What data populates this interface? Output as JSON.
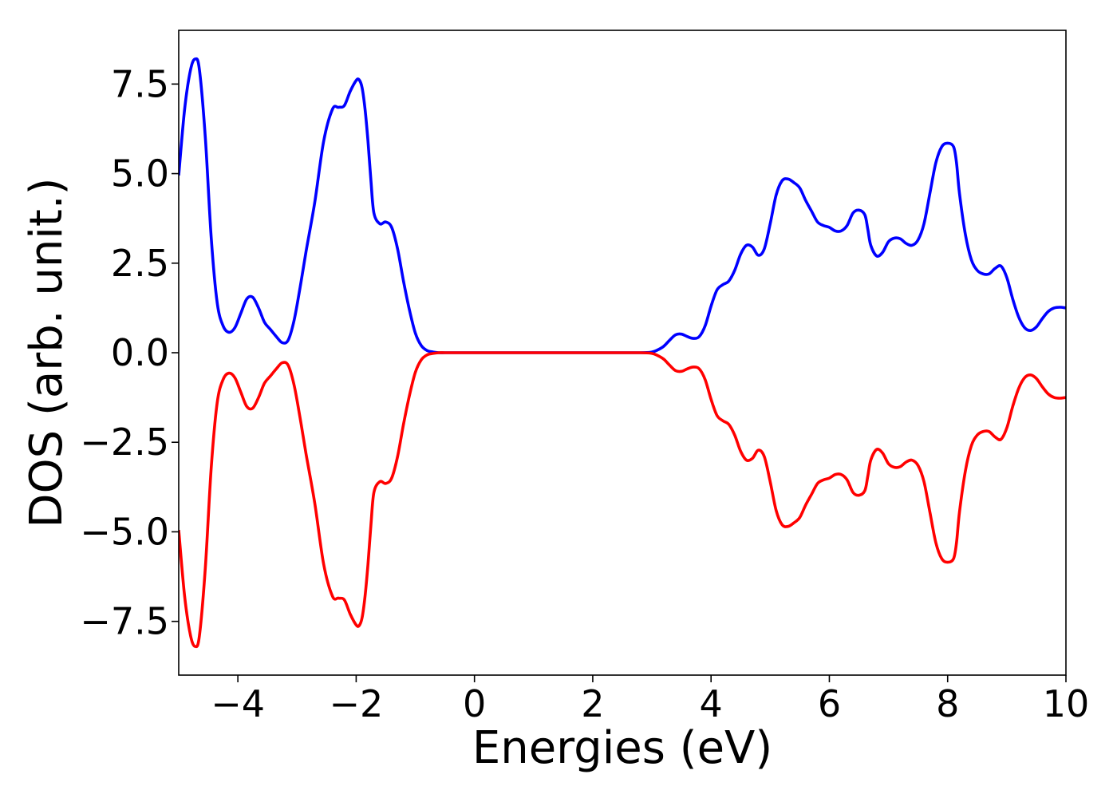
{
  "chart_data": {
    "type": "line",
    "title": "",
    "xlabel": "Energies (eV)",
    "ylabel": "DOS (arb. unit.)",
    "xlim": [
      -5,
      10
    ],
    "ylim": [
      -9.0,
      9.0
    ],
    "grid": false,
    "legend": "none",
    "x_ticks": [
      -4,
      -2,
      0,
      2,
      4,
      6,
      8,
      10
    ],
    "x_tick_labels": [
      "−4",
      "−2",
      "0",
      "2",
      "4",
      "6",
      "8",
      "10"
    ],
    "y_ticks": [
      7.5,
      5.0,
      2.5,
      0.0,
      -2.5,
      -5.0,
      -7.5
    ],
    "y_tick_labels": [
      "7.5",
      "5.0",
      "2.5",
      "0.0",
      "−2.5",
      "−5.0",
      "−7.5"
    ],
    "series": [
      {
        "color": "#0000ff",
        "x": [
          -5.0,
          -4.9,
          -4.8,
          -4.72,
          -4.65,
          -4.55,
          -4.45,
          -4.35,
          -4.25,
          -4.15,
          -4.05,
          -3.95,
          -3.85,
          -3.75,
          -3.65,
          -3.55,
          -3.45,
          -3.35,
          -3.25,
          -3.15,
          -3.05,
          -2.95,
          -2.85,
          -2.7,
          -2.55,
          -2.4,
          -2.3,
          -2.2,
          -2.1,
          -2.0,
          -1.95,
          -1.9,
          -1.85,
          -1.8,
          -1.75,
          -1.7,
          -1.6,
          -1.5,
          -1.4,
          -1.3,
          -1.2,
          -1.1,
          -1.0,
          -0.9,
          -0.8,
          -0.7,
          -0.6,
          -0.5,
          -0.3,
          0.0,
          1.0,
          2.0,
          2.8,
          3.0,
          3.1,
          3.2,
          3.3,
          3.4,
          3.5,
          3.6,
          3.7,
          3.8,
          3.9,
          4.0,
          4.1,
          4.2,
          4.3,
          4.4,
          4.5,
          4.6,
          4.7,
          4.8,
          4.9,
          5.0,
          5.1,
          5.2,
          5.3,
          5.4,
          5.5,
          5.6,
          5.7,
          5.8,
          5.9,
          6.0,
          6.1,
          6.2,
          6.3,
          6.4,
          6.5,
          6.6,
          6.65,
          6.7,
          6.8,
          6.9,
          7.0,
          7.1,
          7.2,
          7.3,
          7.4,
          7.5,
          7.6,
          7.7,
          7.8,
          7.9,
          8.0,
          8.1,
          8.15,
          8.2,
          8.3,
          8.4,
          8.5,
          8.6,
          8.7,
          8.8,
          8.9,
          9.0,
          9.1,
          9.2,
          9.3,
          9.4,
          9.5,
          9.6,
          9.7,
          9.8,
          9.9,
          10.0
        ],
        "y": [
          4.95,
          6.8,
          7.9,
          8.2,
          7.9,
          6.0,
          3.2,
          1.4,
          0.75,
          0.57,
          0.7,
          1.1,
          1.5,
          1.55,
          1.25,
          0.85,
          0.65,
          0.45,
          0.28,
          0.35,
          0.9,
          1.8,
          2.8,
          4.2,
          5.9,
          6.8,
          6.85,
          6.9,
          7.3,
          7.6,
          7.62,
          7.4,
          6.8,
          5.9,
          4.8,
          3.9,
          3.6,
          3.65,
          3.5,
          2.9,
          2.0,
          1.2,
          0.55,
          0.2,
          0.06,
          0.02,
          0.0,
          0.0,
          0.0,
          0.0,
          0.0,
          0.0,
          0.0,
          0.02,
          0.08,
          0.18,
          0.35,
          0.5,
          0.52,
          0.45,
          0.4,
          0.45,
          0.75,
          1.3,
          1.75,
          1.9,
          2.0,
          2.3,
          2.75,
          3.0,
          2.95,
          2.72,
          2.9,
          3.6,
          4.4,
          4.8,
          4.85,
          4.75,
          4.6,
          4.25,
          3.95,
          3.65,
          3.55,
          3.5,
          3.4,
          3.4,
          3.55,
          3.9,
          3.98,
          3.85,
          3.45,
          3.0,
          2.7,
          2.8,
          3.1,
          3.2,
          3.18,
          3.05,
          3.0,
          3.15,
          3.6,
          4.45,
          5.3,
          5.75,
          5.85,
          5.75,
          5.3,
          4.45,
          3.3,
          2.6,
          2.3,
          2.2,
          2.2,
          2.35,
          2.42,
          2.1,
          1.5,
          1.0,
          0.7,
          0.62,
          0.72,
          0.95,
          1.15,
          1.25,
          1.27,
          1.25
        ]
      },
      {
        "color": "#ff0000",
        "x": [
          -5.0,
          -4.9,
          -4.8,
          -4.72,
          -4.65,
          -4.55,
          -4.45,
          -4.35,
          -4.25,
          -4.15,
          -4.05,
          -3.95,
          -3.85,
          -3.75,
          -3.65,
          -3.55,
          -3.45,
          -3.35,
          -3.25,
          -3.15,
          -3.05,
          -2.95,
          -2.85,
          -2.7,
          -2.55,
          -2.4,
          -2.3,
          -2.2,
          -2.1,
          -2.0,
          -1.95,
          -1.9,
          -1.85,
          -1.8,
          -1.75,
          -1.7,
          -1.6,
          -1.5,
          -1.4,
          -1.3,
          -1.2,
          -1.1,
          -1.0,
          -0.9,
          -0.8,
          -0.7,
          -0.6,
          -0.5,
          -0.3,
          0.0,
          1.0,
          2.0,
          2.8,
          3.0,
          3.1,
          3.2,
          3.3,
          3.4,
          3.5,
          3.6,
          3.7,
          3.8,
          3.9,
          4.0,
          4.1,
          4.2,
          4.3,
          4.4,
          4.5,
          4.6,
          4.7,
          4.8,
          4.9,
          5.0,
          5.1,
          5.2,
          5.3,
          5.4,
          5.5,
          5.6,
          5.7,
          5.8,
          5.9,
          6.0,
          6.1,
          6.2,
          6.3,
          6.4,
          6.5,
          6.6,
          6.65,
          6.7,
          6.8,
          6.9,
          7.0,
          7.1,
          7.2,
          7.3,
          7.4,
          7.5,
          7.6,
          7.7,
          7.8,
          7.9,
          8.0,
          8.1,
          8.15,
          8.2,
          8.3,
          8.4,
          8.5,
          8.6,
          8.7,
          8.8,
          8.9,
          9.0,
          9.1,
          9.2,
          9.3,
          9.4,
          9.5,
          9.6,
          9.7,
          9.8,
          9.9,
          10.0
        ],
        "y": [
          -4.95,
          -6.8,
          -7.9,
          -8.2,
          -7.9,
          -6.0,
          -3.2,
          -1.4,
          -0.75,
          -0.57,
          -0.7,
          -1.1,
          -1.5,
          -1.55,
          -1.25,
          -0.85,
          -0.65,
          -0.45,
          -0.28,
          -0.35,
          -0.9,
          -1.8,
          -2.8,
          -4.2,
          -5.9,
          -6.8,
          -6.85,
          -6.9,
          -7.3,
          -7.6,
          -7.62,
          -7.4,
          -6.8,
          -5.9,
          -4.8,
          -3.9,
          -3.6,
          -3.65,
          -3.5,
          -2.9,
          -2.0,
          -1.2,
          -0.55,
          -0.2,
          -0.06,
          -0.02,
          0.0,
          0.0,
          0.0,
          0.0,
          0.0,
          0.0,
          0.0,
          -0.02,
          -0.08,
          -0.18,
          -0.35,
          -0.5,
          -0.52,
          -0.45,
          -0.4,
          -0.45,
          -0.75,
          -1.3,
          -1.75,
          -1.9,
          -2.0,
          -2.3,
          -2.75,
          -3.0,
          -2.95,
          -2.72,
          -2.9,
          -3.6,
          -4.4,
          -4.8,
          -4.85,
          -4.75,
          -4.6,
          -4.25,
          -3.95,
          -3.65,
          -3.55,
          -3.5,
          -3.4,
          -3.4,
          -3.55,
          -3.9,
          -3.98,
          -3.85,
          -3.45,
          -3.0,
          -2.7,
          -2.8,
          -3.1,
          -3.2,
          -3.18,
          -3.05,
          -3.0,
          -3.15,
          -3.6,
          -4.45,
          -5.3,
          -5.75,
          -5.85,
          -5.75,
          -5.3,
          -4.45,
          -3.3,
          -2.6,
          -2.3,
          -2.2,
          -2.2,
          -2.35,
          -2.42,
          -2.1,
          -1.5,
          -1.0,
          -0.7,
          -0.62,
          -0.72,
          -0.95,
          -1.15,
          -1.25,
          -1.27,
          -1.25
        ]
      }
    ]
  }
}
